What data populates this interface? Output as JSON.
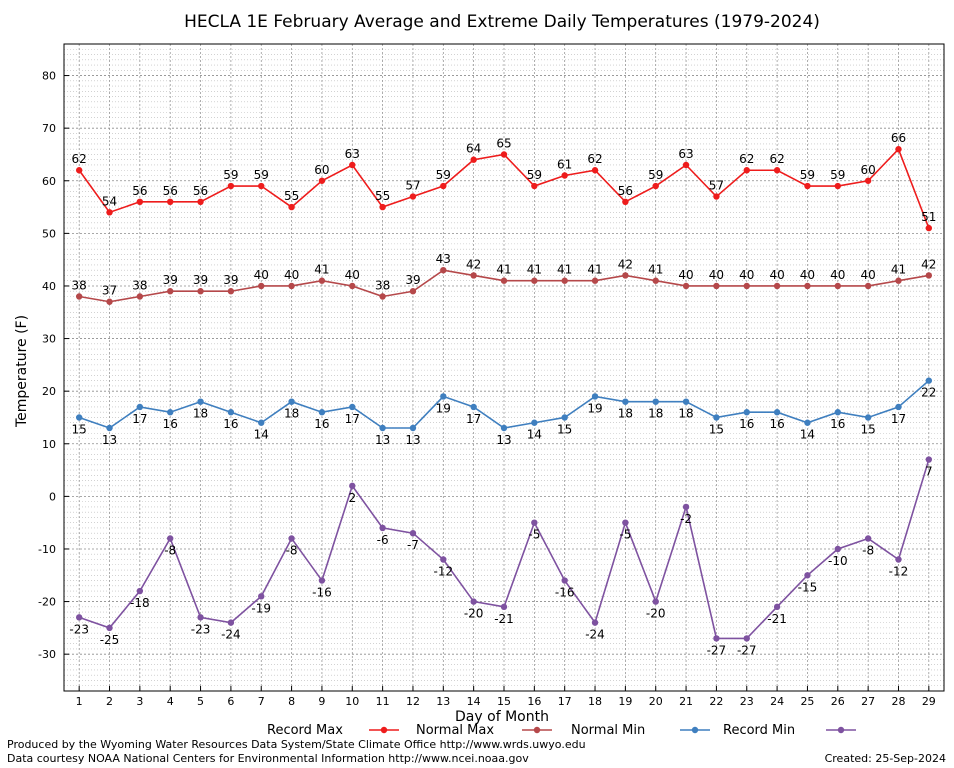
{
  "chart_data": {
    "type": "line",
    "title": "HECLA 1E February Average and Extreme Daily Temperatures (1979-2024)",
    "xlabel": "Day of Month",
    "ylabel": "Temperature (F)",
    "ylim": [
      -37,
      86
    ],
    "yticks": [
      -30,
      -20,
      -10,
      0,
      10,
      20,
      30,
      40,
      50,
      60,
      70,
      80
    ],
    "x": [
      1,
      2,
      3,
      4,
      5,
      6,
      7,
      8,
      9,
      10,
      11,
      12,
      13,
      14,
      15,
      16,
      17,
      18,
      19,
      20,
      21,
      22,
      23,
      24,
      25,
      26,
      27,
      28,
      29
    ],
    "grid": true,
    "legend_position": "bottom",
    "series": [
      {
        "name": "Record Max",
        "color": "#ee1c1c",
        "values": [
          62,
          54,
          56,
          56,
          56,
          59,
          59,
          55,
          60,
          63,
          55,
          57,
          59,
          64,
          65,
          59,
          61,
          62,
          56,
          59,
          63,
          57,
          62,
          62,
          59,
          59,
          60,
          66,
          51
        ]
      },
      {
        "name": "Normal Max",
        "color": "#b5484a",
        "values": [
          38,
          37,
          38,
          39,
          39,
          39,
          40,
          40,
          41,
          40,
          38,
          39,
          43,
          42,
          41,
          41,
          41,
          41,
          42,
          41,
          40,
          40,
          40,
          40,
          40,
          40,
          40,
          41,
          42
        ]
      },
      {
        "name": "Normal Min",
        "color": "#3f7fbf",
        "values": [
          15,
          13,
          17,
          16,
          18,
          16,
          14,
          18,
          16,
          17,
          13,
          13,
          19,
          17,
          13,
          14,
          15,
          19,
          18,
          18,
          18,
          15,
          16,
          16,
          14,
          16,
          15,
          17,
          22
        ]
      },
      {
        "name": "Record Min",
        "color": "#7e52a0",
        "values": [
          -23,
          -25,
          -18,
          -8,
          -23,
          -24,
          -19,
          -8,
          -16,
          2,
          -6,
          -7,
          -12,
          -20,
          -21,
          -5,
          -16,
          -24,
          -5,
          -20,
          -2,
          -27,
          -27,
          -21,
          -15,
          -10,
          -8,
          -12,
          7
        ]
      }
    ]
  },
  "footer": {
    "produced_by": "Produced by the Wyoming Water Resources Data System/State Climate Office http://www.wrds.uwyo.edu",
    "courtesy": "Data courtesy NOAA National Centers for Environmental Information http://www.ncei.noaa.gov",
    "created": "Created:  25-Sep-2024"
  }
}
